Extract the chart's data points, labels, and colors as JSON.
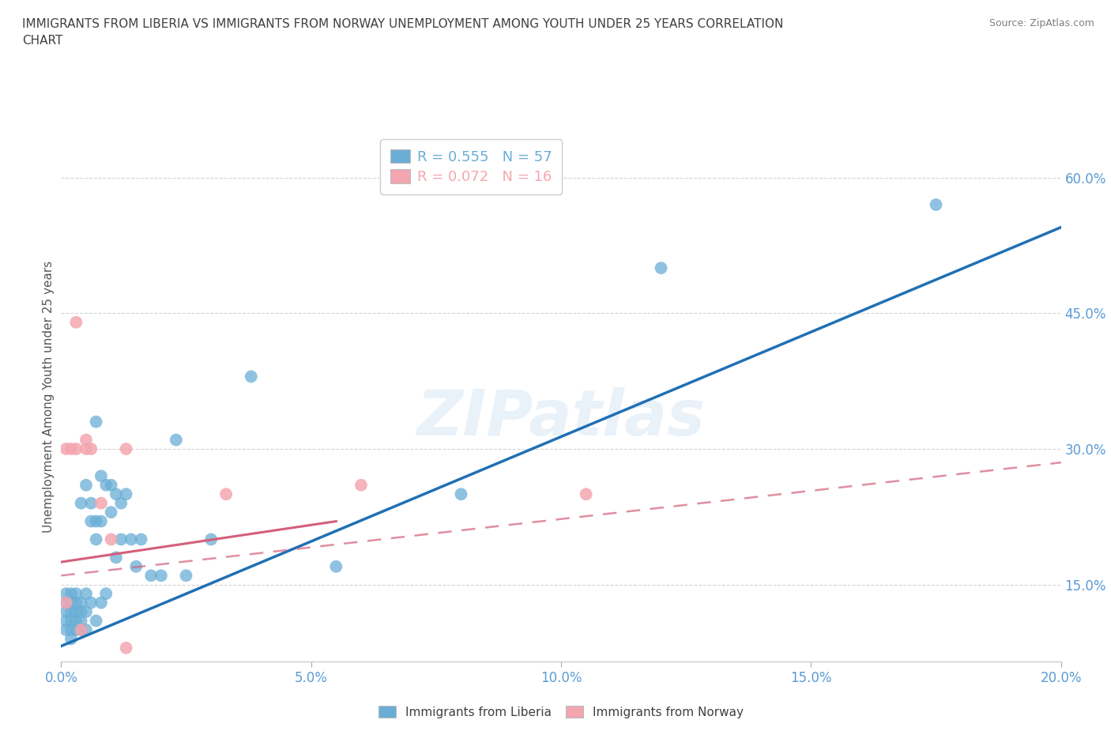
{
  "title": "IMMIGRANTS FROM LIBERIA VS IMMIGRANTS FROM NORWAY UNEMPLOYMENT AMONG YOUTH UNDER 25 YEARS CORRELATION\nCHART",
  "source": "Source: ZipAtlas.com",
  "ylabel": "Unemployment Among Youth under 25 years",
  "watermark": "ZIPatlas",
  "xlim": [
    0.0,
    0.2
  ],
  "ylim": [
    0.065,
    0.65
  ],
  "xticks": [
    0.0,
    0.05,
    0.1,
    0.15,
    0.2
  ],
  "yticks": [
    0.15,
    0.3,
    0.45,
    0.6
  ],
  "xtick_labels": [
    "0.0%",
    "5.0%",
    "10.0%",
    "15.0%",
    "20.0%"
  ],
  "ytick_labels": [
    "15.0%",
    "30.0%",
    "45.0%",
    "60.0%"
  ],
  "legend_liberia": "R = 0.555   N = 57",
  "legend_norway": "R = 0.072   N = 16",
  "legend_label_liberia": "Immigrants from Liberia",
  "legend_label_norway": "Immigrants from Norway",
  "dot_color_liberia": "#6aaed6",
  "dot_color_norway": "#f4a6b0",
  "line_color_liberia": "#2070b4",
  "line_color_norway": "#d45f7a",
  "background_color": "#ffffff",
  "grid_color": "#d0d0d0",
  "axis_label_color": "#5b9bd5",
  "title_color": "#404040",
  "source_color": "#808080",
  "blue_line_x": [
    0.0,
    0.2
  ],
  "blue_line_y": [
    0.082,
    0.545
  ],
  "pink_solid_line_x": [
    0.0,
    0.055
  ],
  "pink_solid_line_y": [
    0.175,
    0.22
  ],
  "pink_dashed_line_x": [
    0.0,
    0.2
  ],
  "pink_dashed_line_y": [
    0.16,
    0.285
  ],
  "liberia_x": [
    0.001,
    0.001,
    0.001,
    0.001,
    0.001,
    0.002,
    0.002,
    0.002,
    0.002,
    0.002,
    0.002,
    0.003,
    0.003,
    0.003,
    0.003,
    0.003,
    0.004,
    0.004,
    0.004,
    0.004,
    0.004,
    0.005,
    0.005,
    0.005,
    0.005,
    0.006,
    0.006,
    0.006,
    0.007,
    0.007,
    0.007,
    0.007,
    0.008,
    0.008,
    0.008,
    0.009,
    0.009,
    0.01,
    0.01,
    0.011,
    0.011,
    0.012,
    0.012,
    0.013,
    0.014,
    0.015,
    0.016,
    0.018,
    0.02,
    0.023,
    0.025,
    0.03,
    0.038,
    0.055,
    0.08,
    0.12,
    0.175
  ],
  "liberia_y": [
    0.1,
    0.11,
    0.12,
    0.13,
    0.14,
    0.09,
    0.1,
    0.11,
    0.12,
    0.13,
    0.14,
    0.1,
    0.11,
    0.12,
    0.13,
    0.14,
    0.1,
    0.11,
    0.12,
    0.13,
    0.24,
    0.1,
    0.12,
    0.14,
    0.26,
    0.13,
    0.22,
    0.24,
    0.11,
    0.2,
    0.22,
    0.33,
    0.13,
    0.22,
    0.27,
    0.14,
    0.26,
    0.23,
    0.26,
    0.18,
    0.25,
    0.2,
    0.24,
    0.25,
    0.2,
    0.17,
    0.2,
    0.16,
    0.16,
    0.31,
    0.16,
    0.2,
    0.38,
    0.17,
    0.25,
    0.5,
    0.57
  ],
  "norway_x": [
    0.001,
    0.001,
    0.002,
    0.003,
    0.003,
    0.004,
    0.005,
    0.005,
    0.006,
    0.008,
    0.01,
    0.013,
    0.013,
    0.033,
    0.06,
    0.105
  ],
  "norway_y": [
    0.13,
    0.3,
    0.3,
    0.3,
    0.44,
    0.1,
    0.3,
    0.31,
    0.3,
    0.24,
    0.2,
    0.08,
    0.3,
    0.25,
    0.26,
    0.25
  ]
}
